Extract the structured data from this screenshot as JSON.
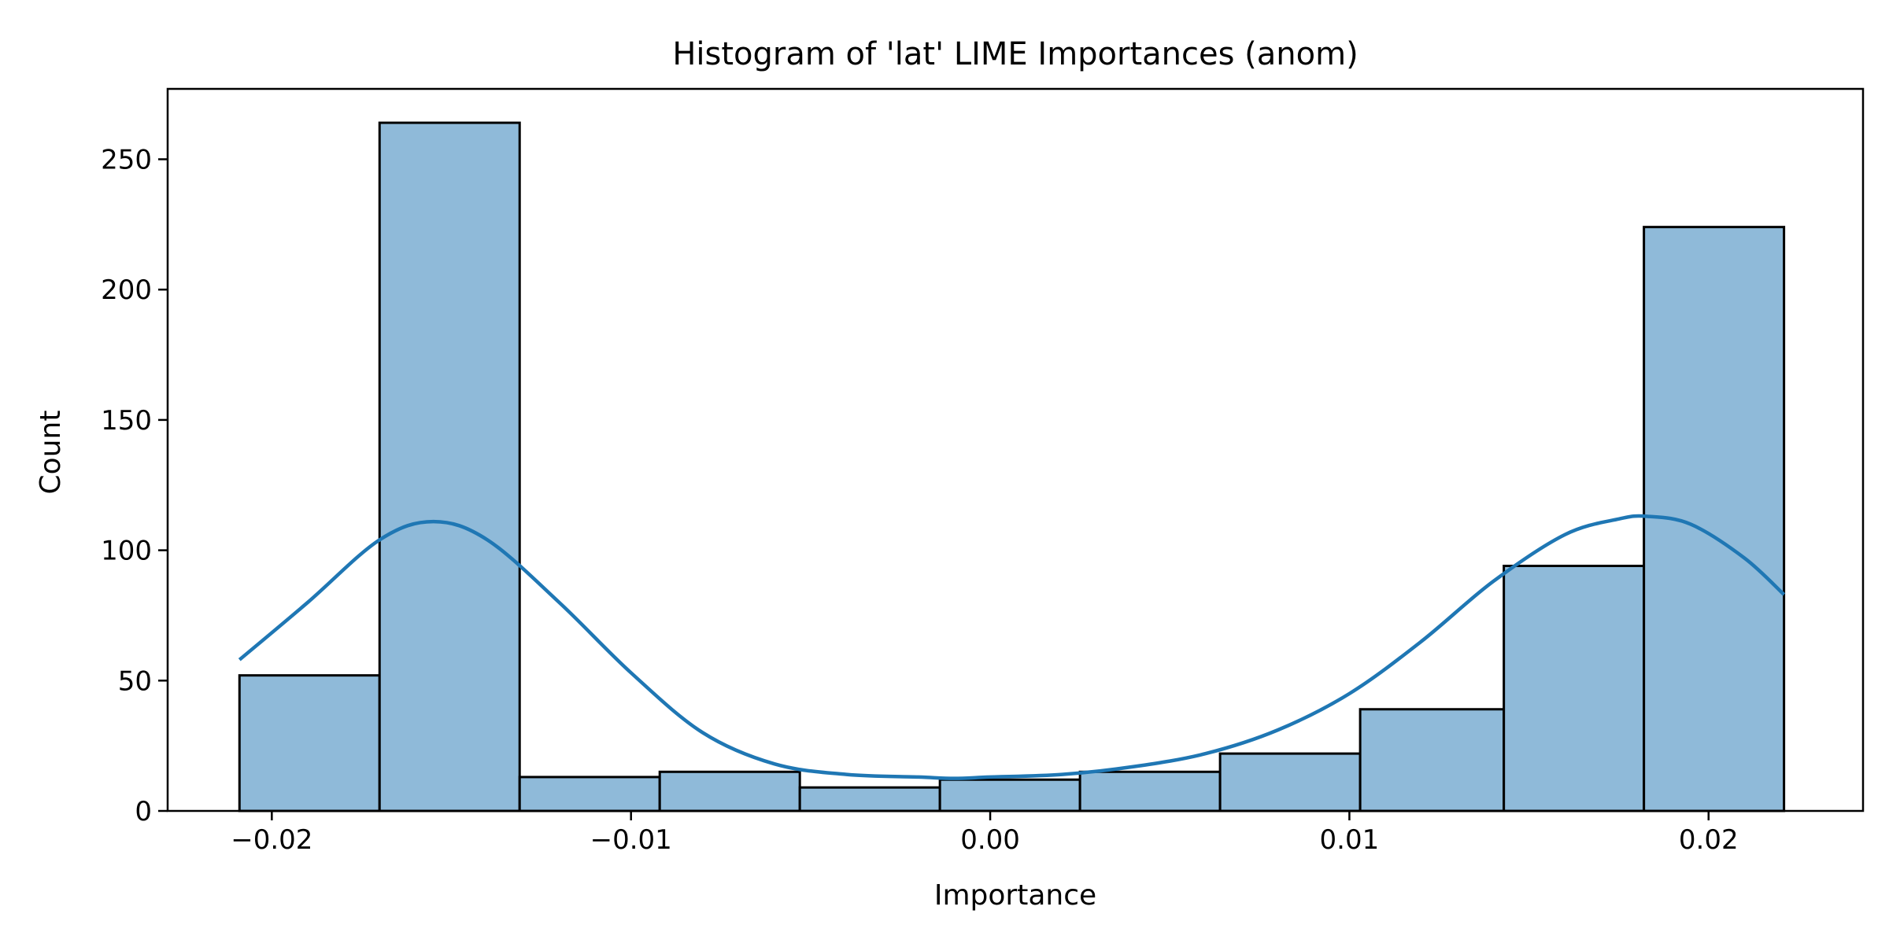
{
  "chart_data": {
    "type": "bar",
    "title": "Histogram of 'lat' LIME Importances (anom)",
    "xlabel": "Importance",
    "ylabel": "Count",
    "xlim": [
      -0.0229,
      0.0243
    ],
    "ylim": [
      0,
      277
    ],
    "xticks": [
      -0.02,
      -0.01,
      0.0,
      0.01,
      0.02
    ],
    "xtick_labels": [
      "−0.02",
      "−0.01",
      "0.00",
      "0.01",
      "0.02"
    ],
    "yticks": [
      0,
      50,
      100,
      150,
      200,
      250
    ],
    "ytick_labels": [
      "0",
      "50",
      "100",
      "150",
      "200",
      "250"
    ],
    "grid": false,
    "bins": {
      "edges": [
        -0.0209,
        -0.017,
        -0.0131,
        -0.0092,
        -0.0053,
        -0.0014,
        0.0025,
        0.0064,
        0.0103,
        0.0143,
        0.0182,
        0.0221
      ],
      "counts": [
        52,
        264,
        13,
        15,
        9,
        12,
        15,
        22,
        39,
        94,
        224
      ]
    },
    "kde": {
      "x": [
        -0.0209,
        -0.019,
        -0.017,
        -0.0155,
        -0.014,
        -0.012,
        -0.01,
        -0.008,
        -0.006,
        -0.004,
        -0.002,
        -0.001,
        0.0,
        0.002,
        0.004,
        0.006,
        0.008,
        0.01,
        0.012,
        0.014,
        0.016,
        0.0175,
        0.0183,
        0.0195,
        0.021,
        0.0221
      ],
      "y": [
        58,
        80,
        104,
        111,
        104,
        80,
        53,
        30,
        18,
        14,
        13,
        12.5,
        13,
        14,
        17,
        22,
        31,
        45,
        65,
        88,
        106,
        112,
        113,
        110,
        97,
        83
      ]
    },
    "colors": {
      "bar_fill": "#8fbad9",
      "bar_edge": "#000000",
      "kde_line": "#1f77b4"
    }
  }
}
